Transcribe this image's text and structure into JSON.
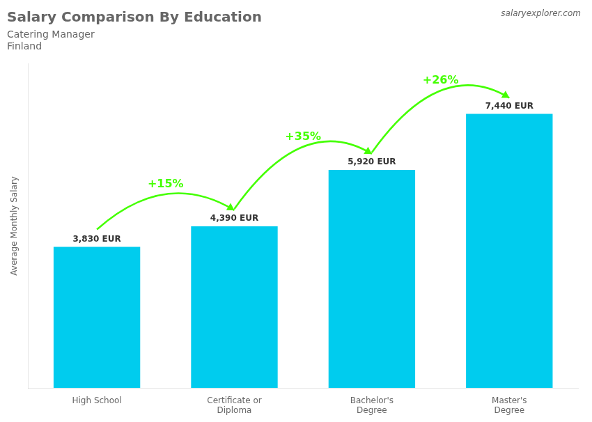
{
  "chart_data": {
    "type": "bar",
    "title": "Salary Comparison By Education",
    "subtitle": [
      "Catering Manager",
      "Finland"
    ],
    "ylabel": "Average Monthly Salary",
    "categories": [
      "High School",
      "Certificate or\nDiploma",
      "Bachelor's\nDegree",
      "Master's\nDegree"
    ],
    "values": [
      3830,
      4390,
      5920,
      7440
    ],
    "value_labels": [
      "3,830 EUR",
      "4,390 EUR",
      "5,920 EUR",
      "7,440 EUR"
    ],
    "data_labels": true,
    "color": "#00ccee",
    "ylim": [
      0,
      8800
    ],
    "tick_labels": "x",
    "grid": false,
    "annotations": [
      {
        "text": "+15%",
        "from": "High School",
        "to": "Certificate or\nDiploma",
        "color": "#44ff00"
      },
      {
        "text": "+35%",
        "from": "Certificate or\nDiploma",
        "to": "Bachelor's\nDegree",
        "color": "#44ff00"
      },
      {
        "text": "+26%",
        "from": "Bachelor's\nDegree",
        "to": "Master's\nDegree",
        "color": "#44ff00"
      },
      {
        "text": "salaryexplorer.com"
      }
    ]
  }
}
